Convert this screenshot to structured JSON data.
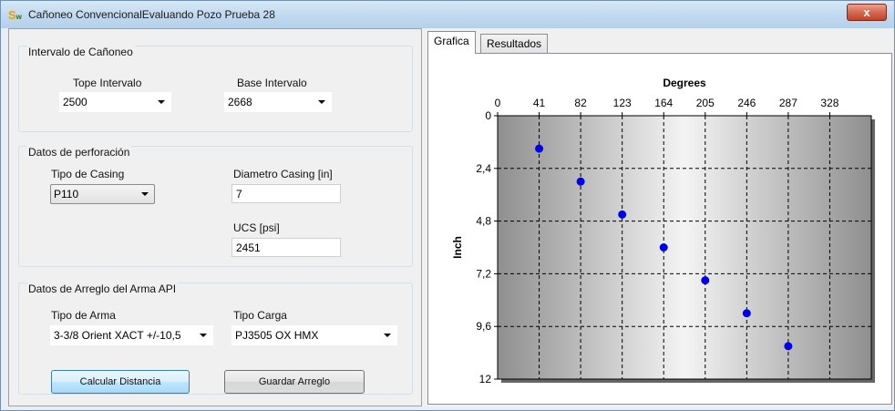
{
  "window": {
    "title": "Cañoneo ConvencionalEvaluando Pozo Prueba 28",
    "close_label": "x"
  },
  "intervalo": {
    "legend": "Intervalo de Cañoneo",
    "tope_label": "Tope Intervalo",
    "tope_value": "2500",
    "base_label": "Base Intervalo",
    "base_value": "2668"
  },
  "perforacion": {
    "legend": "Datos de perforación",
    "tipo_casing_label": "Tipo de Casing",
    "tipo_casing_value": "P110",
    "diametro_label": "Diametro Casing [in]",
    "diametro_value": "7",
    "ucs_label": "UCS [psi]",
    "ucs_value": "2451"
  },
  "arma": {
    "legend": "Datos de Arreglo del Arma API",
    "tipo_arma_label": "Tipo de Arma",
    "tipo_arma_value": "3-3/8 Orient XACT +/-10,5",
    "tipo_carga_label": "Tipo Carga",
    "tipo_carga_value": "PJ3505 OX HMX"
  },
  "buttons": {
    "calcular": "Calcular Distancia",
    "guardar": "Guardar Arreglo"
  },
  "tabs": [
    "Grafica",
    "Resultados"
  ],
  "chart_data": {
    "type": "scatter",
    "xlabel": "Degrees",
    "ylabel": "Inch",
    "x_ticks": [
      "0",
      "41",
      "82",
      "123",
      "164",
      "205",
      "246",
      "287",
      "328"
    ],
    "y_ticks": [
      "0",
      "2,4",
      "4,8",
      "7,2",
      "9,6",
      "12"
    ],
    "xlim": [
      0,
      369
    ],
    "ylim": [
      0,
      12
    ],
    "y_inverted": true,
    "x_axis_position": "top",
    "grid": true,
    "point_color": "#0000ee",
    "points": [
      {
        "x": 41,
        "y": 1.5
      },
      {
        "x": 82,
        "y": 3.0
      },
      {
        "x": 123,
        "y": 4.5
      },
      {
        "x": 164,
        "y": 6.0
      },
      {
        "x": 205,
        "y": 7.5
      },
      {
        "x": 246,
        "y": 9.0
      },
      {
        "x": 287,
        "y": 10.5
      }
    ]
  }
}
